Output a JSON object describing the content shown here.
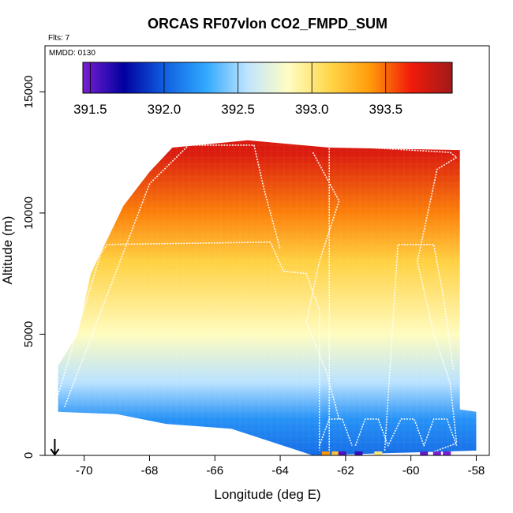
{
  "chart_data": {
    "type": "heatmap",
    "title": "ORCAS RF07vlon CO2_FMPD_SUM",
    "flights_label": "Flts: 7",
    "mmdd_label": "MMDD: 0130",
    "xlabel": "Longitude (deg E)",
    "ylabel": "Altitude (m)",
    "xlim": [
      -71.2,
      -57.6
    ],
    "ylim": [
      0,
      16900
    ],
    "x_ticks": [
      "-70",
      "-68",
      "-66",
      "-64",
      "-62",
      "-60",
      "-58"
    ],
    "x_tick_values": [
      -70,
      -68,
      -66,
      -64,
      -62,
      -60,
      -58
    ],
    "y_ticks": [
      "0",
      "5000",
      "10000",
      "15000"
    ],
    "y_tick_values": [
      0,
      5000,
      10000,
      15000
    ],
    "colorbar": {
      "min": 391.45,
      "max": 393.95,
      "ticks": [
        "391.5",
        "392.0",
        "392.5",
        "393.0",
        "393.5"
      ],
      "tick_values": [
        391.5,
        392.0,
        392.5,
        393.0,
        393.5
      ],
      "colors": [
        "#7a1fd2",
        "#0000a0",
        "#1060e0",
        "#30a8ff",
        "#bfe4ff",
        "#fffdc4",
        "#ffd84a",
        "#ff9a0a",
        "#f11a0a",
        "#a01a1a"
      ]
    },
    "field_profile": [
      {
        "alt": 0,
        "value": 392.05
      },
      {
        "alt": 1500,
        "value": 392.2
      },
      {
        "alt": 3000,
        "value": 392.55
      },
      {
        "alt": 5000,
        "value": 392.85
      },
      {
        "alt": 8000,
        "value": 393.15
      },
      {
        "alt": 10000,
        "value": 393.45
      },
      {
        "alt": 12500,
        "value": 393.75
      }
    ],
    "domain_envelope": [
      {
        "lon": -70.8,
        "alt": 1800
      },
      {
        "lon": -70.8,
        "alt": 3700
      },
      {
        "lon": -70.2,
        "alt": 5000
      },
      {
        "lon": -69.8,
        "alt": 7500
      },
      {
        "lon": -69.3,
        "alt": 8900
      },
      {
        "lon": -68.8,
        "alt": 10300
      },
      {
        "lon": -68.0,
        "alt": 11700
      },
      {
        "lon": -67.3,
        "alt": 12700
      },
      {
        "lon": -65.0,
        "alt": 13000
      },
      {
        "lon": -62.5,
        "alt": 12700
      },
      {
        "lon": -58.5,
        "alt": 12600
      },
      {
        "lon": -58.5,
        "alt": 1900
      },
      {
        "lon": -58.0,
        "alt": 1800
      },
      {
        "lon": -58.0,
        "alt": 200
      },
      {
        "lon": -63.0,
        "alt": 0
      },
      {
        "lon": -65.5,
        "alt": 1100
      },
      {
        "lon": -67.5,
        "alt": 1300
      },
      {
        "lon": -69.0,
        "alt": 1700
      }
    ],
    "flight_tracks": [
      [
        {
          "lon": -70.8,
          "alt": 2500
        },
        {
          "lon": -69.5,
          "alt": 8300
        },
        {
          "lon": -69.3,
          "alt": 8700
        },
        {
          "lon": -64.3,
          "alt": 8800
        },
        {
          "lon": -63.9,
          "alt": 7600
        },
        {
          "lon": -63.2,
          "alt": 7500
        },
        {
          "lon": -62.8,
          "alt": 6000
        },
        {
          "lon": -62.8,
          "alt": 200
        }
      ],
      [
        {
          "lon": -70.6,
          "alt": 2000
        },
        {
          "lon": -68.0,
          "alt": 11200
        },
        {
          "lon": -66.8,
          "alt": 12800
        },
        {
          "lon": -64.8,
          "alt": 12800
        },
        {
          "lon": -64.5,
          "alt": 11000
        },
        {
          "lon": -64.0,
          "alt": 8500
        }
      ],
      [
        {
          "lon": -62.6,
          "alt": 12800
        },
        {
          "lon": -58.8,
          "alt": 12500
        },
        {
          "lon": -58.6,
          "alt": 12300
        },
        {
          "lon": -59.2,
          "alt": 11800
        },
        {
          "lon": -59.8,
          "alt": 8000
        },
        {
          "lon": -59.3,
          "alt": 5000
        },
        {
          "lon": -58.8,
          "alt": 3000
        },
        {
          "lon": -58.6,
          "alt": 500
        },
        {
          "lon": -59.3,
          "alt": 150
        }
      ],
      [
        {
          "lon": -62.5,
          "alt": 12900
        },
        {
          "lon": -62.5,
          "alt": 200
        }
      ],
      [
        {
          "lon": -60.8,
          "alt": 200
        },
        {
          "lon": -60.4,
          "alt": 8700
        },
        {
          "lon": -59.3,
          "alt": 8700
        },
        {
          "lon": -59.0,
          "alt": 6500
        },
        {
          "lon": -58.7,
          "alt": 3500
        }
      ],
      [
        {
          "lon": -63.0,
          "alt": 12500
        },
        {
          "lon": -62.2,
          "alt": 10500
        },
        {
          "lon": -62.8,
          "alt": 8000
        },
        {
          "lon": -63.2,
          "alt": 5500
        },
        {
          "lon": -62.6,
          "alt": 3500
        },
        {
          "lon": -62.2,
          "alt": 1500
        }
      ],
      [
        {
          "lon": -61.7,
          "alt": 400
        },
        {
          "lon": -61.4,
          "alt": 1500
        },
        {
          "lon": -61.0,
          "alt": 1500
        },
        {
          "lon": -60.7,
          "alt": 400
        },
        {
          "lon": -60.3,
          "alt": 1500
        },
        {
          "lon": -59.9,
          "alt": 1500
        },
        {
          "lon": -59.6,
          "alt": 400
        },
        {
          "lon": -59.3,
          "alt": 1500
        },
        {
          "lon": -58.9,
          "alt": 1500
        },
        {
          "lon": -58.6,
          "alt": 400
        }
      ],
      [
        {
          "lon": -62.8,
          "alt": 400
        },
        {
          "lon": -62.5,
          "alt": 1500
        },
        {
          "lon": -62.1,
          "alt": 1500
        },
        {
          "lon": -61.8,
          "alt": 400
        }
      ]
    ],
    "surface_markers": [
      {
        "lon": -62.6,
        "value": 393.4
      },
      {
        "lon": -62.3,
        "value": 393.2
      },
      {
        "lon": -62.1,
        "value": 391.55
      },
      {
        "lon": -61.6,
        "value": 391.6
      },
      {
        "lon": -61.0,
        "value": 393.0
      },
      {
        "lon": -59.6,
        "value": 391.5
      },
      {
        "lon": -59.2,
        "value": 391.45
      },
      {
        "lon": -58.9,
        "value": 391.45
      }
    ],
    "arrow_longitude": -70.9
  }
}
